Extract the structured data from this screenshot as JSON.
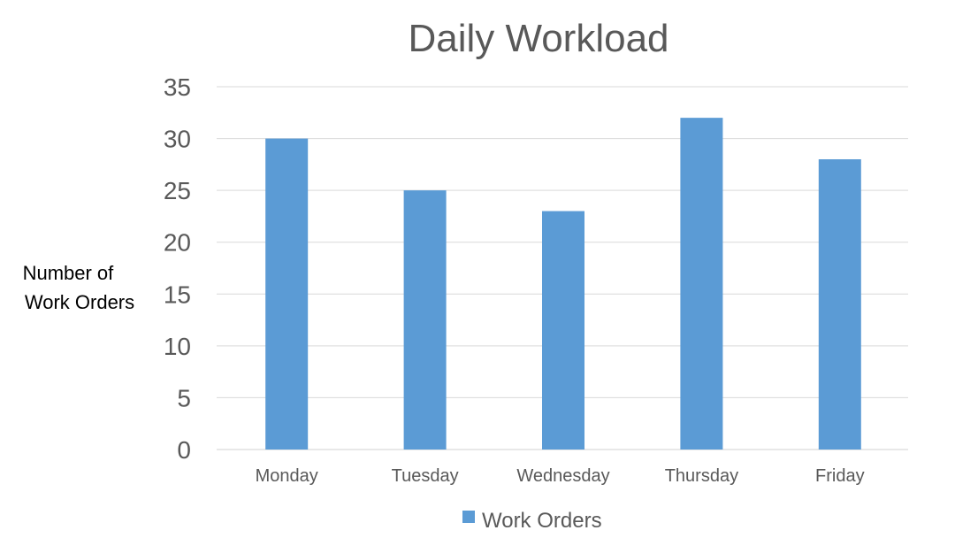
{
  "chart_data": {
    "type": "bar",
    "title": "Daily Workload",
    "xlabel": "",
    "ylabel_lines": [
      "Number of",
      "Work Orders"
    ],
    "categories": [
      "Monday",
      "Tuesday",
      "Wednesday",
      "Thursday",
      "Friday"
    ],
    "series": [
      {
        "name": "Work Orders",
        "values": [
          30,
          25,
          23,
          32,
          28
        ],
        "color": "#5b9bd5"
      }
    ],
    "ylim": [
      0,
      35
    ],
    "yticks": [
      0,
      5,
      10,
      15,
      20,
      25,
      30,
      35
    ],
    "grid": true,
    "legend": "bottom"
  }
}
